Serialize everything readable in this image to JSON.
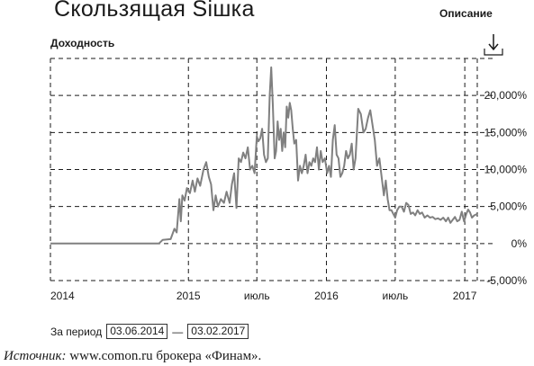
{
  "header": {
    "title": "Скользящая Sішка",
    "describe_label": "Описание",
    "download_icon": "download-arrow-icon"
  },
  "period": {
    "label": "За период",
    "from": "03.06.2014",
    "dash": "—",
    "to": "03.02.2017"
  },
  "source": {
    "lead": "Источник:",
    "text": " www.comon.ru брокера «Финам»."
  },
  "colors": {
    "line": "#808080",
    "grid": "#1a1a1a",
    "text": "#1a1a1a"
  },
  "chart_data": {
    "type": "line",
    "title": "",
    "ylabel": "Доходность",
    "xlabel": "",
    "ylim": [
      -5,
      25
    ],
    "yticks": [
      -5,
      0,
      5,
      10,
      15,
      20
    ],
    "ytick_labels": [
      "-5,000%",
      "0%",
      "5,000%",
      "10,000%",
      "15,000%",
      "20,000%"
    ],
    "grid": true,
    "x_ticks": [
      {
        "date": "2014-01-01",
        "label": "2014"
      },
      {
        "date": "2015-01-01",
        "label": "2015"
      },
      {
        "date": "2015-07-01",
        "label": "июль"
      },
      {
        "date": "2016-01-01",
        "label": "2016"
      },
      {
        "date": "2016-07-01",
        "label": "июль"
      },
      {
        "date": "2017-01-01",
        "label": "2017"
      }
    ],
    "xlim": [
      "2014-01-01",
      "2017-02-03"
    ],
    "series": [
      {
        "name": "",
        "points": [
          [
            "2014-01-01",
            0
          ],
          [
            "2014-06-03",
            0
          ],
          [
            "2014-09-10",
            0
          ],
          [
            "2014-10-15",
            0.0
          ],
          [
            "2014-10-25",
            0.5
          ],
          [
            "2014-11-15",
            0.6
          ],
          [
            "2014-11-25",
            2.0
          ],
          [
            "2014-12-01",
            1.5
          ],
          [
            "2014-12-08",
            6.0
          ],
          [
            "2014-12-12",
            3.0
          ],
          [
            "2014-12-16",
            6.5
          ],
          [
            "2014-12-22",
            5.8
          ],
          [
            "2014-12-28",
            7.5
          ],
          [
            "2015-01-05",
            6.8
          ],
          [
            "2015-01-12",
            8.5
          ],
          [
            "2015-01-18",
            7.0
          ],
          [
            "2015-01-25",
            8.8
          ],
          [
            "2015-02-01",
            7.8
          ],
          [
            "2015-02-10",
            10.0
          ],
          [
            "2015-02-17",
            11.0
          ],
          [
            "2015-02-24",
            9.0
          ],
          [
            "2015-03-02",
            8.0
          ],
          [
            "2015-03-08",
            4.5
          ],
          [
            "2015-03-14",
            6.5
          ],
          [
            "2015-03-20",
            5.0
          ],
          [
            "2015-03-28",
            6.0
          ],
          [
            "2015-04-05",
            5.5
          ],
          [
            "2015-04-12",
            7.0
          ],
          [
            "2015-04-20",
            5.5
          ],
          [
            "2015-04-26",
            8.0
          ],
          [
            "2015-05-02",
            9.5
          ],
          [
            "2015-05-08",
            4.8
          ],
          [
            "2015-05-14",
            11.5
          ],
          [
            "2015-05-20",
            11.0
          ],
          [
            "2015-05-26",
            12.3
          ],
          [
            "2015-06-01",
            11.5
          ],
          [
            "2015-06-07",
            13.0
          ],
          [
            "2015-06-13",
            10.0
          ],
          [
            "2015-06-19",
            10.5
          ],
          [
            "2015-06-25",
            9.5
          ],
          [
            "2015-07-01",
            14.5
          ],
          [
            "2015-07-05",
            13.8
          ],
          [
            "2015-07-10",
            14.2
          ],
          [
            "2015-07-15",
            15.5
          ],
          [
            "2015-07-20",
            12.0
          ],
          [
            "2015-07-25",
            11.0
          ],
          [
            "2015-07-30",
            11.5
          ],
          [
            "2015-08-04",
            20.0
          ],
          [
            "2015-08-08",
            23.8
          ],
          [
            "2015-08-12",
            19.0
          ],
          [
            "2015-08-17",
            11.5
          ],
          [
            "2015-08-21",
            12.5
          ],
          [
            "2015-08-25",
            16.5
          ],
          [
            "2015-08-29",
            14.0
          ],
          [
            "2015-09-02",
            15.5
          ],
          [
            "2015-09-06",
            12.5
          ],
          [
            "2015-09-10",
            15.0
          ],
          [
            "2015-09-14",
            13.0
          ],
          [
            "2015-09-18",
            18.5
          ],
          [
            "2015-09-22",
            17.0
          ],
          [
            "2015-09-26",
            19.0
          ],
          [
            "2015-09-30",
            18.0
          ],
          [
            "2015-10-04",
            15.5
          ],
          [
            "2015-10-08",
            13.5
          ],
          [
            "2015-10-13",
            14.0
          ],
          [
            "2015-10-18",
            8.5
          ],
          [
            "2015-10-23",
            10.5
          ],
          [
            "2015-10-28",
            9.5
          ],
          [
            "2015-11-02",
            10.5
          ],
          [
            "2015-11-07",
            12.0
          ],
          [
            "2015-11-12",
            9.5
          ],
          [
            "2015-11-17",
            11.0
          ],
          [
            "2015-11-22",
            10.5
          ],
          [
            "2015-11-27",
            11.5
          ],
          [
            "2015-12-02",
            11.0
          ],
          [
            "2015-12-07",
            13.0
          ],
          [
            "2015-12-12",
            10.0
          ],
          [
            "2015-12-17",
            12.5
          ],
          [
            "2015-12-22",
            11.0
          ],
          [
            "2015-12-28",
            11.5
          ],
          [
            "2016-01-03",
            9.5
          ],
          [
            "2016-01-08",
            10.5
          ],
          [
            "2016-01-13",
            9.0
          ],
          [
            "2016-01-18",
            14.0
          ],
          [
            "2016-01-23",
            16.0
          ],
          [
            "2016-01-28",
            12.0
          ],
          [
            "2016-02-02",
            11.5
          ],
          [
            "2016-02-07",
            9.0
          ],
          [
            "2016-02-12",
            9.5
          ],
          [
            "2016-02-17",
            10.5
          ],
          [
            "2016-02-22",
            12.5
          ],
          [
            "2016-02-27",
            11.5
          ],
          [
            "2016-03-03",
            12.0
          ],
          [
            "2016-03-08",
            13.5
          ],
          [
            "2016-03-13",
            10.0
          ],
          [
            "2016-03-18",
            11.5
          ],
          [
            "2016-03-25",
            18.2
          ],
          [
            "2016-04-01",
            17.5
          ],
          [
            "2016-04-08",
            15.0
          ],
          [
            "2016-04-14",
            15.5
          ],
          [
            "2016-04-20",
            17.0
          ],
          [
            "2016-04-26",
            18.0
          ],
          [
            "2016-05-02",
            16.0
          ],
          [
            "2016-05-08",
            14.0
          ],
          [
            "2016-05-14",
            10.5
          ],
          [
            "2016-05-20",
            11.5
          ],
          [
            "2016-05-26",
            9.0
          ],
          [
            "2016-06-01",
            6.5
          ],
          [
            "2016-06-06",
            8.5
          ],
          [
            "2016-06-11",
            6.0
          ],
          [
            "2016-06-16",
            4.5
          ],
          [
            "2016-06-21",
            4.5
          ],
          [
            "2016-06-26",
            4.0
          ],
          [
            "2016-07-01",
            3.5
          ],
          [
            "2016-07-06",
            4.5
          ],
          [
            "2016-07-12",
            5.0
          ],
          [
            "2016-07-18",
            5.0
          ],
          [
            "2016-07-24",
            4.3
          ],
          [
            "2016-07-30",
            5.5
          ],
          [
            "2016-08-05",
            5.2
          ],
          [
            "2016-08-11",
            4.0
          ],
          [
            "2016-08-17",
            4.2
          ],
          [
            "2016-08-23",
            3.8
          ],
          [
            "2016-08-29",
            4.5
          ],
          [
            "2016-09-04",
            4.0
          ],
          [
            "2016-09-10",
            4.2
          ],
          [
            "2016-09-17",
            3.5
          ],
          [
            "2016-09-24",
            3.8
          ],
          [
            "2016-10-01",
            3.5
          ],
          [
            "2016-10-08",
            3.6
          ],
          [
            "2016-10-15",
            3.3
          ],
          [
            "2016-10-22",
            3.4
          ],
          [
            "2016-10-29",
            3.2
          ],
          [
            "2016-11-05",
            3.5
          ],
          [
            "2016-11-12",
            3.0
          ],
          [
            "2016-11-18",
            3.5
          ],
          [
            "2016-11-24",
            2.8
          ],
          [
            "2016-11-30",
            3.2
          ],
          [
            "2016-12-06",
            3.6
          ],
          [
            "2016-12-12",
            3.0
          ],
          [
            "2016-12-18",
            3.2
          ],
          [
            "2016-12-24",
            4.3
          ],
          [
            "2016-12-30",
            3.0
          ],
          [
            "2017-01-05",
            4.0
          ],
          [
            "2017-01-10",
            4.6
          ],
          [
            "2017-01-15",
            4.2
          ],
          [
            "2017-01-20",
            3.5
          ],
          [
            "2017-01-26",
            3.8
          ],
          [
            "2017-02-03",
            4.0
          ]
        ]
      }
    ]
  }
}
